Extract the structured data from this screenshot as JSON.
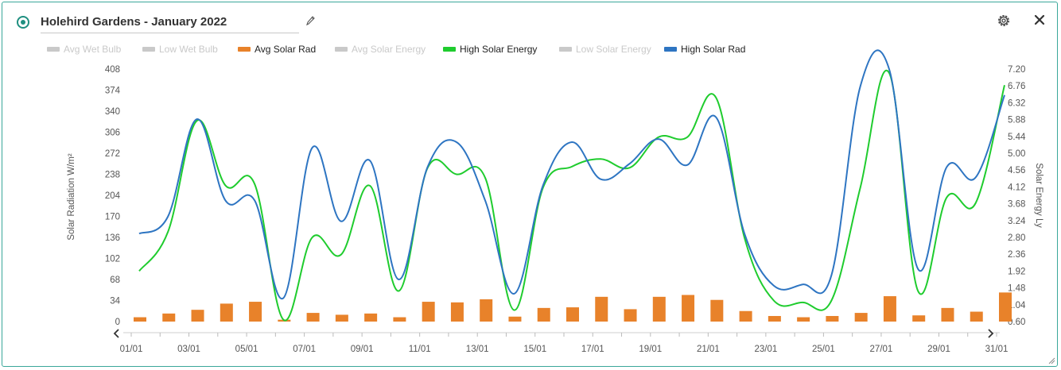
{
  "header": {
    "title": "Holehird Gardens - January 2022"
  },
  "legend": [
    {
      "label": "Avg Wet Bulb",
      "active": false,
      "color": "#c9c9c9"
    },
    {
      "label": "Low Wet Bulb",
      "active": false,
      "color": "#c9c9c9"
    },
    {
      "label": "Avg Solar Rad",
      "active": true,
      "color": "#e8822a"
    },
    {
      "label": "Avg Solar Energy",
      "active": false,
      "color": "#c9c9c9"
    },
    {
      "label": "High Solar Energy",
      "active": true,
      "color": "#1fcc2e"
    },
    {
      "label": "Low Solar Energy",
      "active": false,
      "color": "#c9c9c9"
    },
    {
      "label": "High Solar Rad",
      "active": true,
      "color": "#2e75c2"
    }
  ],
  "icons": {
    "radio": "radio-selected-icon",
    "edit": "pencil-icon",
    "settings": "gear-icon",
    "close": "close-icon",
    "prev": "chevron-left-icon",
    "next": "chevron-right-icon",
    "resize": "resize-handle-icon"
  },
  "chart_data": {
    "type": "line",
    "x": [
      "01/01",
      "02/01",
      "03/01",
      "04/01",
      "05/01",
      "06/01",
      "07/01",
      "08/01",
      "09/01",
      "10/01",
      "11/01",
      "12/01",
      "13/01",
      "14/01",
      "15/01",
      "16/01",
      "17/01",
      "18/01",
      "19/01",
      "20/01",
      "21/01",
      "22/01",
      "23/01",
      "24/01",
      "25/01",
      "26/01",
      "27/01",
      "28/01",
      "29/01",
      "30/01",
      "31/01"
    ],
    "x_tick_labels": [
      "01/01",
      "03/01",
      "05/01",
      "07/01",
      "09/01",
      "11/01",
      "13/01",
      "15/01",
      "17/01",
      "19/01",
      "21/01",
      "23/01",
      "25/01",
      "27/01",
      "29/01",
      "31/01"
    ],
    "ylabel_left": "Solar Radiation W/m²",
    "ylabel_right": "Solar Energy Ly",
    "yticks_left": [
      "408",
      "374",
      "340",
      "306",
      "272",
      "238",
      "204",
      "170",
      "136",
      "102",
      "68",
      "34",
      "0"
    ],
    "yticks_right": [
      "7.20",
      "6.76",
      "6.32",
      "5.88",
      "5.44",
      "5.00",
      "4.56",
      "4.12",
      "3.68",
      "3.24",
      "2.80",
      "2.36",
      "1.92",
      "1.48",
      "1.04",
      "0.60"
    ],
    "ylim_left": [
      0,
      408
    ],
    "ylim_right": [
      0.6,
      7.2
    ],
    "grid": false,
    "series": [
      {
        "name": "Avg Solar Rad",
        "type": "bar",
        "axis": "left",
        "color": "#e8822a",
        "values": [
          7,
          13,
          19,
          29,
          32,
          3,
          14,
          11,
          13,
          7,
          32,
          31,
          36,
          8,
          22,
          23,
          40,
          20,
          40,
          43,
          35,
          17,
          9,
          7,
          9,
          14,
          41,
          10,
          22,
          16,
          47
        ]
      },
      {
        "name": "High Solar Energy",
        "type": "line",
        "axis": "right",
        "color": "#1fcc2e",
        "values": [
          1.92,
          2.95,
          5.85,
          4.15,
          4.2,
          0.65,
          2.8,
          2.35,
          4.15,
          1.4,
          4.62,
          4.45,
          4.35,
          0.9,
          4.1,
          4.65,
          4.85,
          4.62,
          5.42,
          5.42,
          6.45,
          2.75,
          1.15,
          1.1,
          1.15,
          4.1,
          7.1,
          1.4,
          3.85,
          3.7,
          6.78
        ]
      },
      {
        "name": "High Solar Rad",
        "type": "line",
        "axis": "left",
        "color": "#2e75c2",
        "values": [
          142,
          170,
          327,
          195,
          196,
          38,
          281,
          162,
          260,
          68,
          250,
          290,
          195,
          45,
          220,
          290,
          230,
          255,
          295,
          253,
          330,
          140,
          58,
          60,
          75,
          380,
          408,
          85,
          250,
          233,
          366
        ]
      }
    ]
  }
}
